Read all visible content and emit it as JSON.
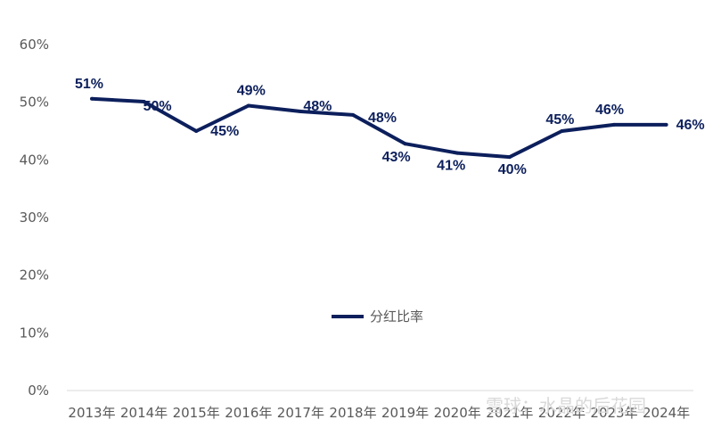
{
  "chart_data": {
    "type": "line",
    "categories": [
      "2013年",
      "2014年",
      "2015年",
      "2016年",
      "2017年",
      "2018年",
      "2019年",
      "2020年",
      "2021年",
      "2022年",
      "2023年",
      "2024年"
    ],
    "series": [
      {
        "name": "分红比率",
        "values": [
          50.6,
          50.1,
          45.0,
          49.4,
          48.4,
          47.8,
          42.8,
          41.2,
          40.5,
          45.0,
          46.1,
          46.1
        ],
        "labels": [
          "51%",
          "50%",
          "45%",
          "49%",
          "48%",
          "48%",
          "43%",
          "41%",
          "40%",
          "45%",
          "46%",
          "46%"
        ],
        "color": "#0c1f5c"
      }
    ],
    "y_ticks": [
      "0%",
      "10%",
      "20%",
      "30%",
      "40%",
      "50%",
      "60%"
    ],
    "ylim": [
      0,
      60
    ],
    "grid": false,
    "legend": "center"
  },
  "watermark": {
    "text": "雪球：水晶的后花园"
  }
}
